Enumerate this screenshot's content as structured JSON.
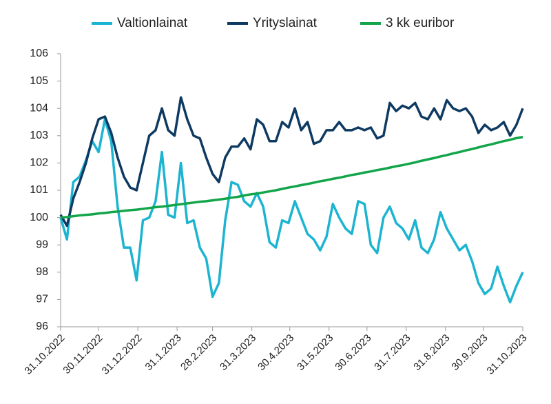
{
  "chart_data": {
    "type": "line",
    "x": [
      "31.10.2022",
      "5.11.2022",
      "10.11.2022",
      "15.11.2022",
      "20.11.2022",
      "25.11.2022",
      "30.11.2022",
      "5.12.2022",
      "10.12.2022",
      "15.12.2022",
      "20.12.2022",
      "25.12.2022",
      "30.12.2022",
      "4.1.2023",
      "9.1.2023",
      "14.1.2023",
      "19.1.2023",
      "24.1.2023",
      "29.1.2023",
      "3.2.2023",
      "8.2.2023",
      "13.2.2023",
      "18.2.2023",
      "23.2.2023",
      "28.2.2023",
      "5.3.2023",
      "10.3.2023",
      "15.3.2023",
      "20.3.2023",
      "25.3.2023",
      "30.3.2023",
      "4.4.2023",
      "9.4.2023",
      "14.4.2023",
      "19.4.2023",
      "24.4.2023",
      "29.4.2023",
      "4.5.2023",
      "9.5.2023",
      "14.5.2023",
      "19.5.2023",
      "24.5.2023",
      "29.5.2023",
      "3.6.2023",
      "8.6.2023",
      "13.6.2023",
      "18.6.2023",
      "23.6.2023",
      "28.6.2023",
      "3.7.2023",
      "8.7.2023",
      "13.7.2023",
      "18.7.2023",
      "23.7.2023",
      "28.7.2023",
      "2.8.2023",
      "7.8.2023",
      "12.8.2023",
      "17.8.2023",
      "22.8.2023",
      "27.8.2023",
      "1.9.2023",
      "6.9.2023",
      "11.9.2023",
      "16.9.2023",
      "21.9.2023",
      "26.9.2023",
      "1.10.2023",
      "6.10.2023",
      "11.10.2023",
      "16.10.2023",
      "21.10.2023",
      "26.10.2023",
      "31.10.2023"
    ],
    "series": [
      {
        "name": "Valtionlainat",
        "color": "#1cb4d1",
        "values": [
          100.0,
          99.2,
          101.3,
          101.5,
          102.1,
          102.8,
          102.4,
          103.6,
          102.8,
          100.4,
          98.9,
          98.9,
          97.7,
          99.9,
          100.0,
          100.6,
          102.4,
          100.1,
          100.0,
          102.0,
          99.8,
          99.9,
          98.9,
          98.5,
          97.1,
          97.6,
          99.9,
          101.3,
          101.2,
          100.6,
          100.4,
          100.9,
          100.4,
          99.1,
          98.9,
          99.9,
          99.8,
          100.6,
          100.0,
          99.4,
          99.2,
          98.8,
          99.3,
          100.5,
          100.0,
          99.6,
          99.4,
          100.6,
          100.5,
          99.0,
          98.7,
          100.0,
          100.4,
          99.8,
          99.6,
          99.2,
          99.9,
          98.9,
          98.7,
          99.2,
          100.2,
          99.6,
          99.2,
          98.8,
          99.0,
          98.4,
          97.6,
          97.2,
          97.4,
          98.2,
          97.5,
          96.9,
          97.5,
          98.0
        ]
      },
      {
        "name": "Yrityslainat",
        "color": "#0e3a62",
        "values": [
          100.1,
          99.7,
          100.7,
          101.3,
          102.0,
          102.9,
          103.6,
          103.7,
          103.1,
          102.2,
          101.5,
          101.1,
          101.0,
          102.0,
          103.0,
          103.2,
          104.0,
          103.2,
          103.0,
          104.4,
          103.6,
          103.0,
          102.9,
          102.2,
          101.6,
          101.3,
          102.2,
          102.6,
          102.6,
          102.9,
          102.5,
          103.6,
          103.4,
          102.8,
          102.8,
          103.5,
          103.3,
          104.0,
          103.2,
          103.5,
          102.7,
          102.8,
          103.2,
          103.2,
          103.5,
          103.2,
          103.2,
          103.3,
          103.2,
          103.3,
          102.9,
          103.0,
          104.2,
          103.9,
          104.1,
          104.0,
          104.2,
          103.7,
          103.6,
          104.0,
          103.6,
          104.3,
          104.0,
          103.9,
          104.0,
          103.7,
          103.1,
          103.4,
          103.2,
          103.3,
          103.5,
          103.0,
          103.4,
          104.0
        ]
      },
      {
        "name": "3 kk euribor",
        "color": "#12a54a",
        "values": [
          100.0,
          100.02,
          100.05,
          100.08,
          100.1,
          100.12,
          100.15,
          100.17,
          100.2,
          100.22,
          100.25,
          100.27,
          100.29,
          100.32,
          100.35,
          100.38,
          100.4,
          100.43,
          100.46,
          100.49,
          100.52,
          100.55,
          100.58,
          100.6,
          100.63,
          100.66,
          100.69,
          100.73,
          100.76,
          100.81,
          100.85,
          100.88,
          100.92,
          100.96,
          101.0,
          101.05,
          101.1,
          101.14,
          101.19,
          101.23,
          101.28,
          101.33,
          101.37,
          101.42,
          101.46,
          101.51,
          101.56,
          101.6,
          101.65,
          101.69,
          101.74,
          101.78,
          101.83,
          101.88,
          101.92,
          101.97,
          102.02,
          102.08,
          102.13,
          102.18,
          102.24,
          102.29,
          102.35,
          102.4,
          102.46,
          102.51,
          102.57,
          102.63,
          102.68,
          102.74,
          102.8,
          102.85,
          102.91,
          102.95
        ]
      }
    ],
    "xlim": [
      "31.10.2022",
      "31.10.2023"
    ],
    "xticks": [
      "31.10.2022",
      "30.11.2022",
      "31.12.2022",
      "31.1.2023",
      "28.2.2023",
      "31.3.2023",
      "30.4.2023",
      "31.5.2023",
      "30.6.2023",
      "31.7.2023",
      "31.8.2023",
      "30.9.2023",
      "31.10.2023"
    ],
    "ylim": [
      96,
      106
    ],
    "yticks": [
      96,
      97,
      98,
      99,
      100,
      101,
      102,
      103,
      104,
      105,
      106
    ],
    "grid": false,
    "legend": "top"
  }
}
